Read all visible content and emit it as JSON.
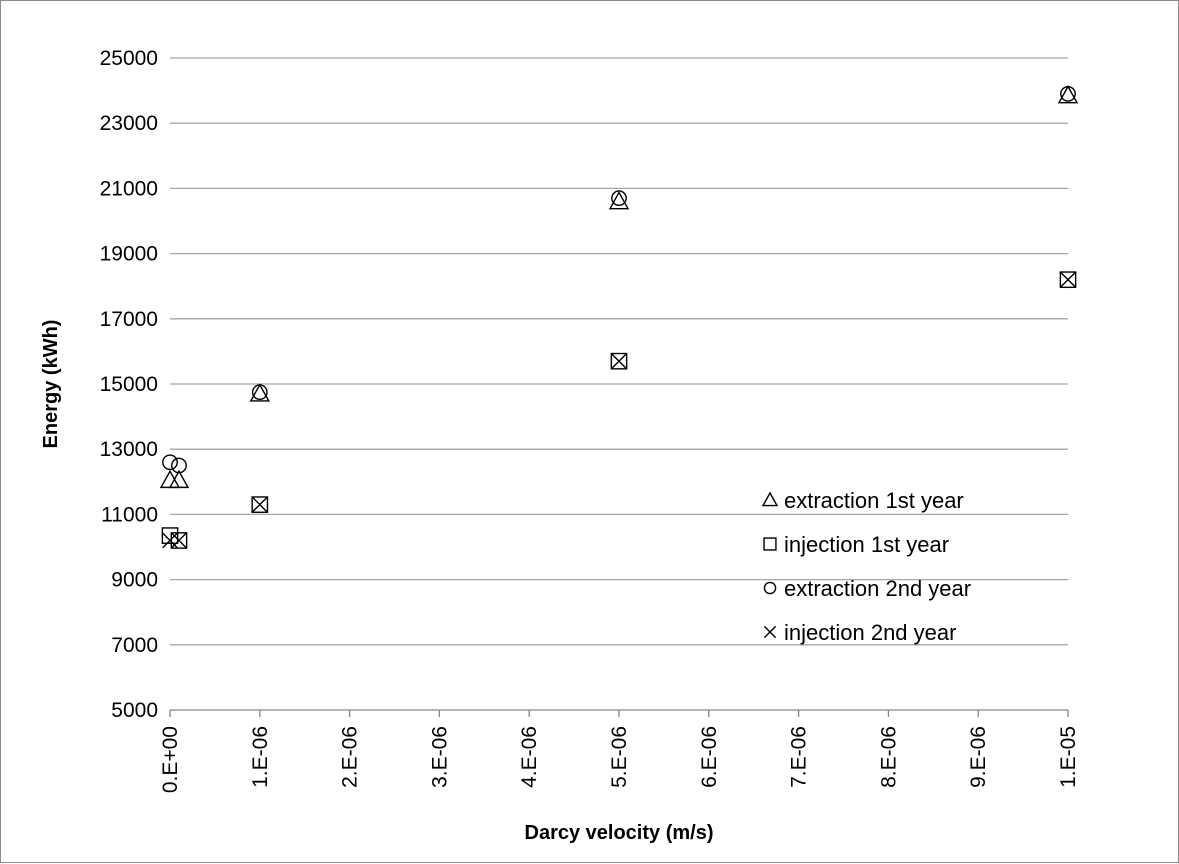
{
  "chart_data": {
    "type": "scatter",
    "xlabel": "Darcy velocity (m/s)",
    "ylabel": "Energy (kWh)",
    "xlim": [
      0,
      1e-05
    ],
    "ylim": [
      5000,
      25000
    ],
    "x_ticks": [
      0,
      1e-06,
      2e-06,
      3e-06,
      4e-06,
      5e-06,
      6e-06,
      7e-06,
      8e-06,
      9e-06,
      1e-05
    ],
    "x_tick_labels": [
      "0.E+00",
      "1.E-06",
      "2.E-06",
      "3.E-06",
      "4.E-06",
      "5.E-06",
      "6.E-06",
      "7.E-06",
      "8.E-06",
      "9.E-06",
      "1.E-05"
    ],
    "y_ticks": [
      5000,
      7000,
      9000,
      11000,
      13000,
      15000,
      17000,
      19000,
      21000,
      23000,
      25000
    ],
    "y_tick_labels": [
      "5000",
      "7000",
      "9000",
      "11000",
      "13000",
      "15000",
      "17000",
      "19000",
      "21000",
      "23000",
      "25000"
    ],
    "grid": "horizontal",
    "legend_position": "right-middle",
    "series": [
      {
        "name": "extraction 1st year",
        "marker": "triangle",
        "x": [
          0,
          1e-07,
          1e-06,
          5e-06,
          1e-05
        ],
        "y": [
          12050,
          12050,
          14700,
          20600,
          23850
        ]
      },
      {
        "name": "injection 1st year",
        "marker": "square",
        "x": [
          0,
          1e-07,
          1e-06,
          5e-06,
          1e-05
        ],
        "y": [
          10350,
          10200,
          11300,
          15700,
          18200
        ]
      },
      {
        "name": "extraction 2nd year",
        "marker": "circle",
        "x": [
          0,
          1e-07,
          1e-06,
          5e-06,
          1e-05
        ],
        "y": [
          12600,
          12500,
          14750,
          20700,
          23900
        ]
      },
      {
        "name": "injection 2nd year",
        "marker": "x",
        "x": [
          0,
          1e-07,
          1e-06,
          5e-06,
          1e-05
        ],
        "y": [
          10200,
          10200,
          11300,
          15700,
          18200
        ]
      }
    ]
  }
}
